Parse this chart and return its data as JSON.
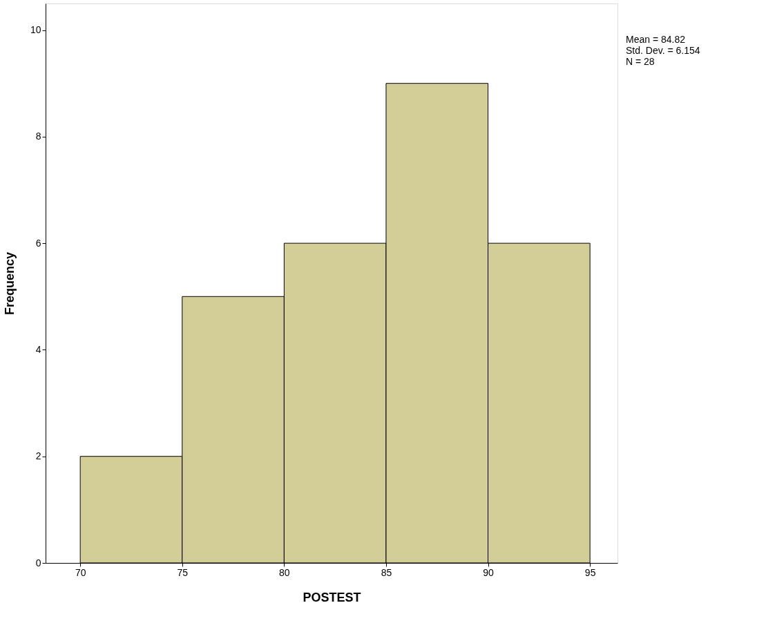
{
  "chart_data": {
    "type": "histogram",
    "xlabel": "POSTEST",
    "ylabel": "Frequency",
    "bins": [
      70,
      75,
      80,
      85,
      90,
      95
    ],
    "values": [
      2,
      5,
      6,
      9,
      6
    ],
    "color": "#d3ce97",
    "xlim": [
      68.3,
      96.35
    ],
    "xticks": [
      70,
      75,
      80,
      85,
      90,
      95
    ],
    "ylim": [
      0,
      10.5
    ],
    "yticks": [
      0,
      2,
      4,
      6,
      8,
      10
    ],
    "grid": false,
    "annotations": [
      "Mean = 84.82",
      "Std. Dev. = 6.154",
      "N = 28"
    ]
  }
}
